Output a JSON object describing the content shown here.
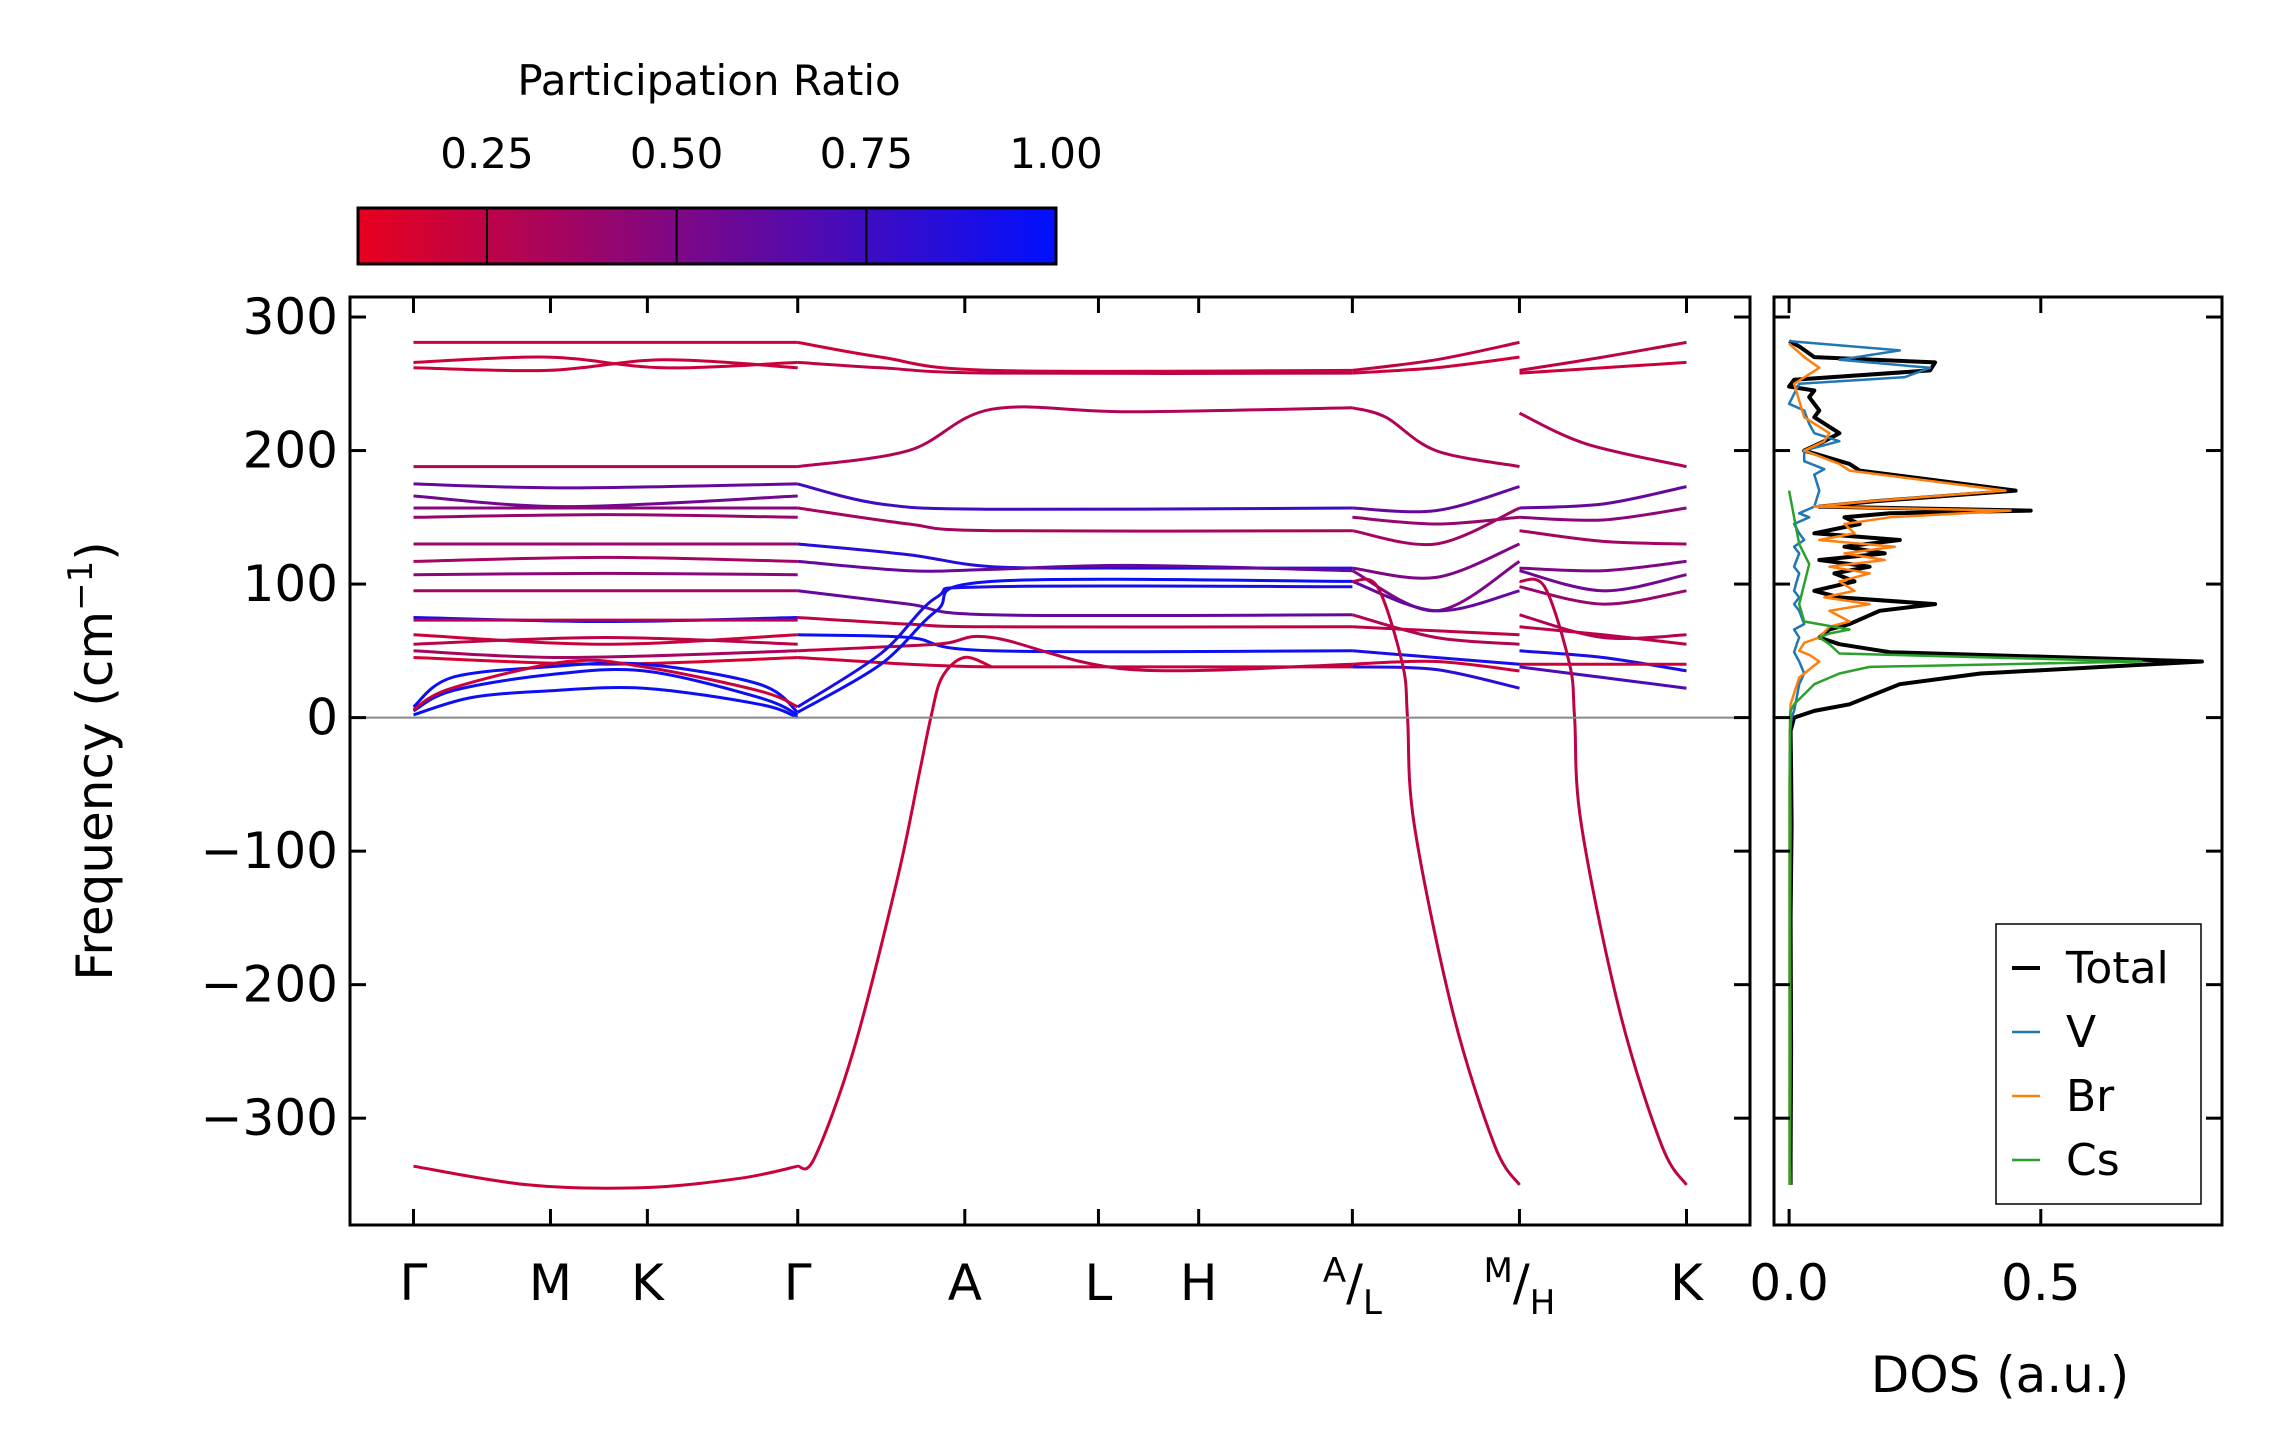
{
  "chart_data": [
    {
      "type": "line",
      "name": "phonon-dispersion",
      "ylabel_main": "Frequency (cm",
      "ylabel_sup": "−1",
      "ylabel_close": ")",
      "ylim": [
        -380,
        315
      ],
      "yticks": [
        300,
        200,
        100,
        0,
        -100,
        -200,
        -300
      ],
      "ytick_labels": [
        "300",
        "200",
        "100",
        "0",
        "−100",
        "−200",
        "−300"
      ],
      "kpoint_labels": [
        {
          "main": "Γ",
          "pos": 0
        },
        {
          "main": "M",
          "pos": 0.82
        },
        {
          "main": "K",
          "pos": 1.4
        },
        {
          "main": "Γ",
          "pos": 2.3
        },
        {
          "main": "A",
          "pos": 3.3
        },
        {
          "main": "L",
          "pos": 4.1
        },
        {
          "main": "H",
          "pos": 4.7
        },
        {
          "sup": "A",
          "sub": "L",
          "pos": 5.62
        },
        {
          "sup": "M",
          "sub": "H",
          "pos": 6.62
        },
        {
          "main": "K",
          "pos": 7.62
        }
      ],
      "xlim": [
        -0.38,
        8.0
      ],
      "segments": [
        {
          "x0": 0,
          "x1": 2.3
        },
        {
          "x0": 2.3,
          "x1": 5.62
        },
        {
          "x0": 5.62,
          "x1": 6.62
        },
        {
          "x0": 6.62,
          "x1": 7.62
        }
      ],
      "zero_line": 0,
      "colorbar": {
        "title": "Participation Ratio",
        "range": [
          0.08,
          1.0
        ],
        "ticks": [
          0.25,
          0.5,
          0.75,
          1.0
        ],
        "tick_labels": [
          "0.25",
          "0.50",
          "0.75",
          "1.00"
        ],
        "cmap": [
          "#e8001e",
          "#0010ff"
        ]
      }
    },
    {
      "type": "line",
      "name": "dos",
      "xlabel": "DOS (a.u.)",
      "xlim": [
        -0.03,
        0.86
      ],
      "xticks": [
        0.0,
        0.5
      ],
      "xtick_labels": [
        "0.0",
        "0.5"
      ],
      "series": [
        {
          "name": "Total",
          "color": "#000000",
          "x": [
            0.003,
            0.003,
            0.004,
            0.003,
            0.005,
            0.004,
            0.003,
            0.01,
            0.05,
            0.12,
            0.22,
            0.38,
            0.82,
            0.2,
            0.1,
            0.06,
            0.08,
            0.12,
            0.18,
            0.29,
            0.1,
            0.05,
            0.13,
            0.09,
            0.16,
            0.06,
            0.19,
            0.11,
            0.22,
            0.05,
            0.14,
            0.11,
            0.2,
            0.48,
            0.06,
            0.17,
            0.45,
            0.14,
            0.12,
            0.03,
            0.07,
            0.1,
            0.05,
            0.06,
            0.04,
            0.05,
            0.0,
            0.01,
            0.28,
            0.29,
            0.05,
            0.02,
            0.0
          ],
          "y": [
            -350,
            -330,
            -250,
            -150,
            -80,
            -40,
            -10,
            0,
            5,
            10,
            25,
            33,
            42,
            49,
            55,
            60,
            66,
            70,
            80,
            85,
            90,
            95,
            102,
            108,
            113,
            118,
            123,
            128,
            133,
            138,
            145,
            150,
            153,
            155,
            158,
            162,
            170,
            185,
            190,
            200,
            207,
            213,
            225,
            230,
            240,
            245,
            248,
            253,
            260,
            266,
            270,
            278,
            282
          ]
        },
        {
          "name": "V",
          "color": "#1f77b4",
          "x": [
            0.003,
            0.002,
            0.003,
            0.002,
            0.003,
            0.002,
            0.002,
            0.005,
            0.01,
            0.015,
            0.02,
            0.03,
            0.02,
            0.01,
            0.015,
            0.02,
            0.01,
            0.03,
            0.02,
            0.01,
            0.02,
            0.01,
            0.015,
            0.02,
            0.01,
            0.015,
            0.02,
            0.01,
            0.03,
            0.02,
            0.01,
            0.04,
            0.02,
            0.05,
            0.06,
            0.05,
            0.07,
            0.03,
            0.03,
            0.1,
            0.05,
            0.04,
            0.03,
            0.0,
            0.02,
            0.23,
            0.28,
            0.1,
            0.22,
            0.0
          ],
          "y": [
            -350,
            -330,
            -250,
            -150,
            -80,
            -40,
            -10,
            0,
            5,
            15,
            25,
            33,
            42,
            49,
            55,
            60,
            66,
            70,
            80,
            85,
            90,
            95,
            102,
            108,
            113,
            118,
            123,
            128,
            133,
            138,
            145,
            150,
            153,
            158,
            170,
            182,
            186,
            192,
            200,
            207,
            213,
            220,
            230,
            235,
            250,
            255,
            262,
            268,
            275,
            282
          ]
        },
        {
          "name": "Br",
          "color": "#ff7f0e",
          "x": [
            0.001,
            0.001,
            0.001,
            0.002,
            0.003,
            0.02,
            0.06,
            0.04,
            0.02,
            0.03,
            0.06,
            0.08,
            0.12,
            0.08,
            0.16,
            0.07,
            0.13,
            0.1,
            0.16,
            0.08,
            0.19,
            0.11,
            0.21,
            0.06,
            0.13,
            0.11,
            0.2,
            0.44,
            0.05,
            0.16,
            0.43,
            0.12,
            0.1,
            0.03,
            0.07,
            0.08,
            0.03,
            0.01,
            0.06,
            0.03,
            0.0
          ],
          "y": [
            -350,
            -200,
            -50,
            0,
            10,
            30,
            42,
            47,
            50,
            56,
            60,
            68,
            72,
            80,
            85,
            90,
            95,
            102,
            108,
            113,
            118,
            123,
            128,
            133,
            138,
            145,
            150,
            155,
            158,
            162,
            170,
            185,
            190,
            200,
            207,
            213,
            225,
            250,
            262,
            270,
            280
          ]
        },
        {
          "name": "Cs",
          "color": "#2ca02c",
          "x": [
            0.001,
            0.001,
            0.001,
            0.002,
            0.003,
            0.01,
            0.05,
            0.1,
            0.16,
            0.7,
            0.1,
            0.08,
            0.06,
            0.08,
            0.12,
            0.03,
            0.02,
            0.03,
            0.04,
            0.02,
            0.01,
            0.0
          ],
          "y": [
            -350,
            -200,
            -50,
            0,
            5,
            10,
            25,
            33,
            38,
            42,
            48,
            55,
            60,
            63,
            66,
            72,
            85,
            100,
            115,
            130,
            150,
            170
          ]
        }
      ],
      "legend": [
        "Total",
        "V",
        "Br",
        "Cs"
      ]
    }
  ]
}
